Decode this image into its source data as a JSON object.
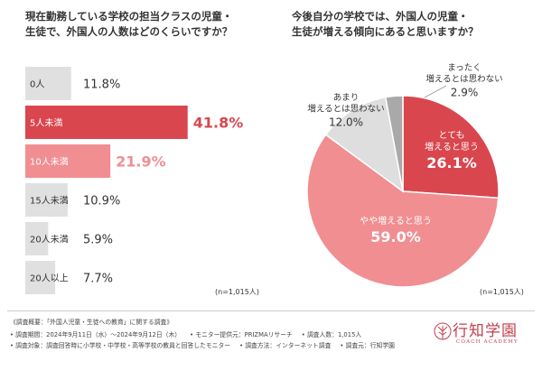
{
  "left": {
    "title_line1": "現在勤務している学校の担当クラスの児童・",
    "title_line2": "生徒で、外国人の人数はどのくらいですか？",
    "n_label": "(n=1,015人)"
  },
  "right": {
    "title_line1": "今後自分の学校では、外国人の児童・",
    "title_line2": "生徒が増える傾向にあると思いますか？",
    "n_label": "(n=1,015人)"
  },
  "footer": {
    "survey_name": "《調査概要：「外国人児童・生徒への教育」に関する調査》",
    "period": "• 調査期間：2024年9月11日（水）～2024年9月12日（木）",
    "provider": "• モニター提供元：PRIZMAリサーチ",
    "count": "• 調査人数：1,015人",
    "target": "• 調査対象：調査回答時に小学校・中学校・高等学校の教員と回答したモニター",
    "method": "• 調査方法：インターネット調査",
    "source": "• 調査元：行知学園"
  },
  "logo": {
    "name": "行知学園",
    "sub": "COACH ACADEMY"
  },
  "colors": {
    "gray_bar": "#e0e0e0",
    "dark_red": "#d9464e",
    "pink": "#f08e92",
    "pie_gray": "#dedede",
    "pie_dark_gray": "#a9a9a9"
  },
  "chart_data": [
    {
      "type": "bar",
      "orientation": "horizontal",
      "categories": [
        "0人",
        "5人未満",
        "10人未満",
        "15人未満",
        "20人未満",
        "20人以上"
      ],
      "values": [
        11.8,
        41.8,
        21.9,
        10.9,
        5.9,
        7.7
      ],
      "value_labels": [
        "11.8%",
        "41.8%",
        "21.9%",
        "10.9%",
        "5.9%",
        "7.7%"
      ],
      "xlim": [
        0,
        45
      ]
    },
    {
      "type": "pie",
      "slices": [
        {
          "label": "とても\n増えると思う",
          "value": 26.1,
          "value_label": "26.1%"
        },
        {
          "label": "やや増えると思う",
          "value": 59.0,
          "value_label": "59.0%"
        },
        {
          "label": "あまり\n増えるとは思わない",
          "value": 12.0,
          "value_label": "12.0%"
        },
        {
          "label": "まったく\n増えるとは思わない",
          "value": 2.9,
          "value_label": "2.9%"
        }
      ]
    }
  ]
}
